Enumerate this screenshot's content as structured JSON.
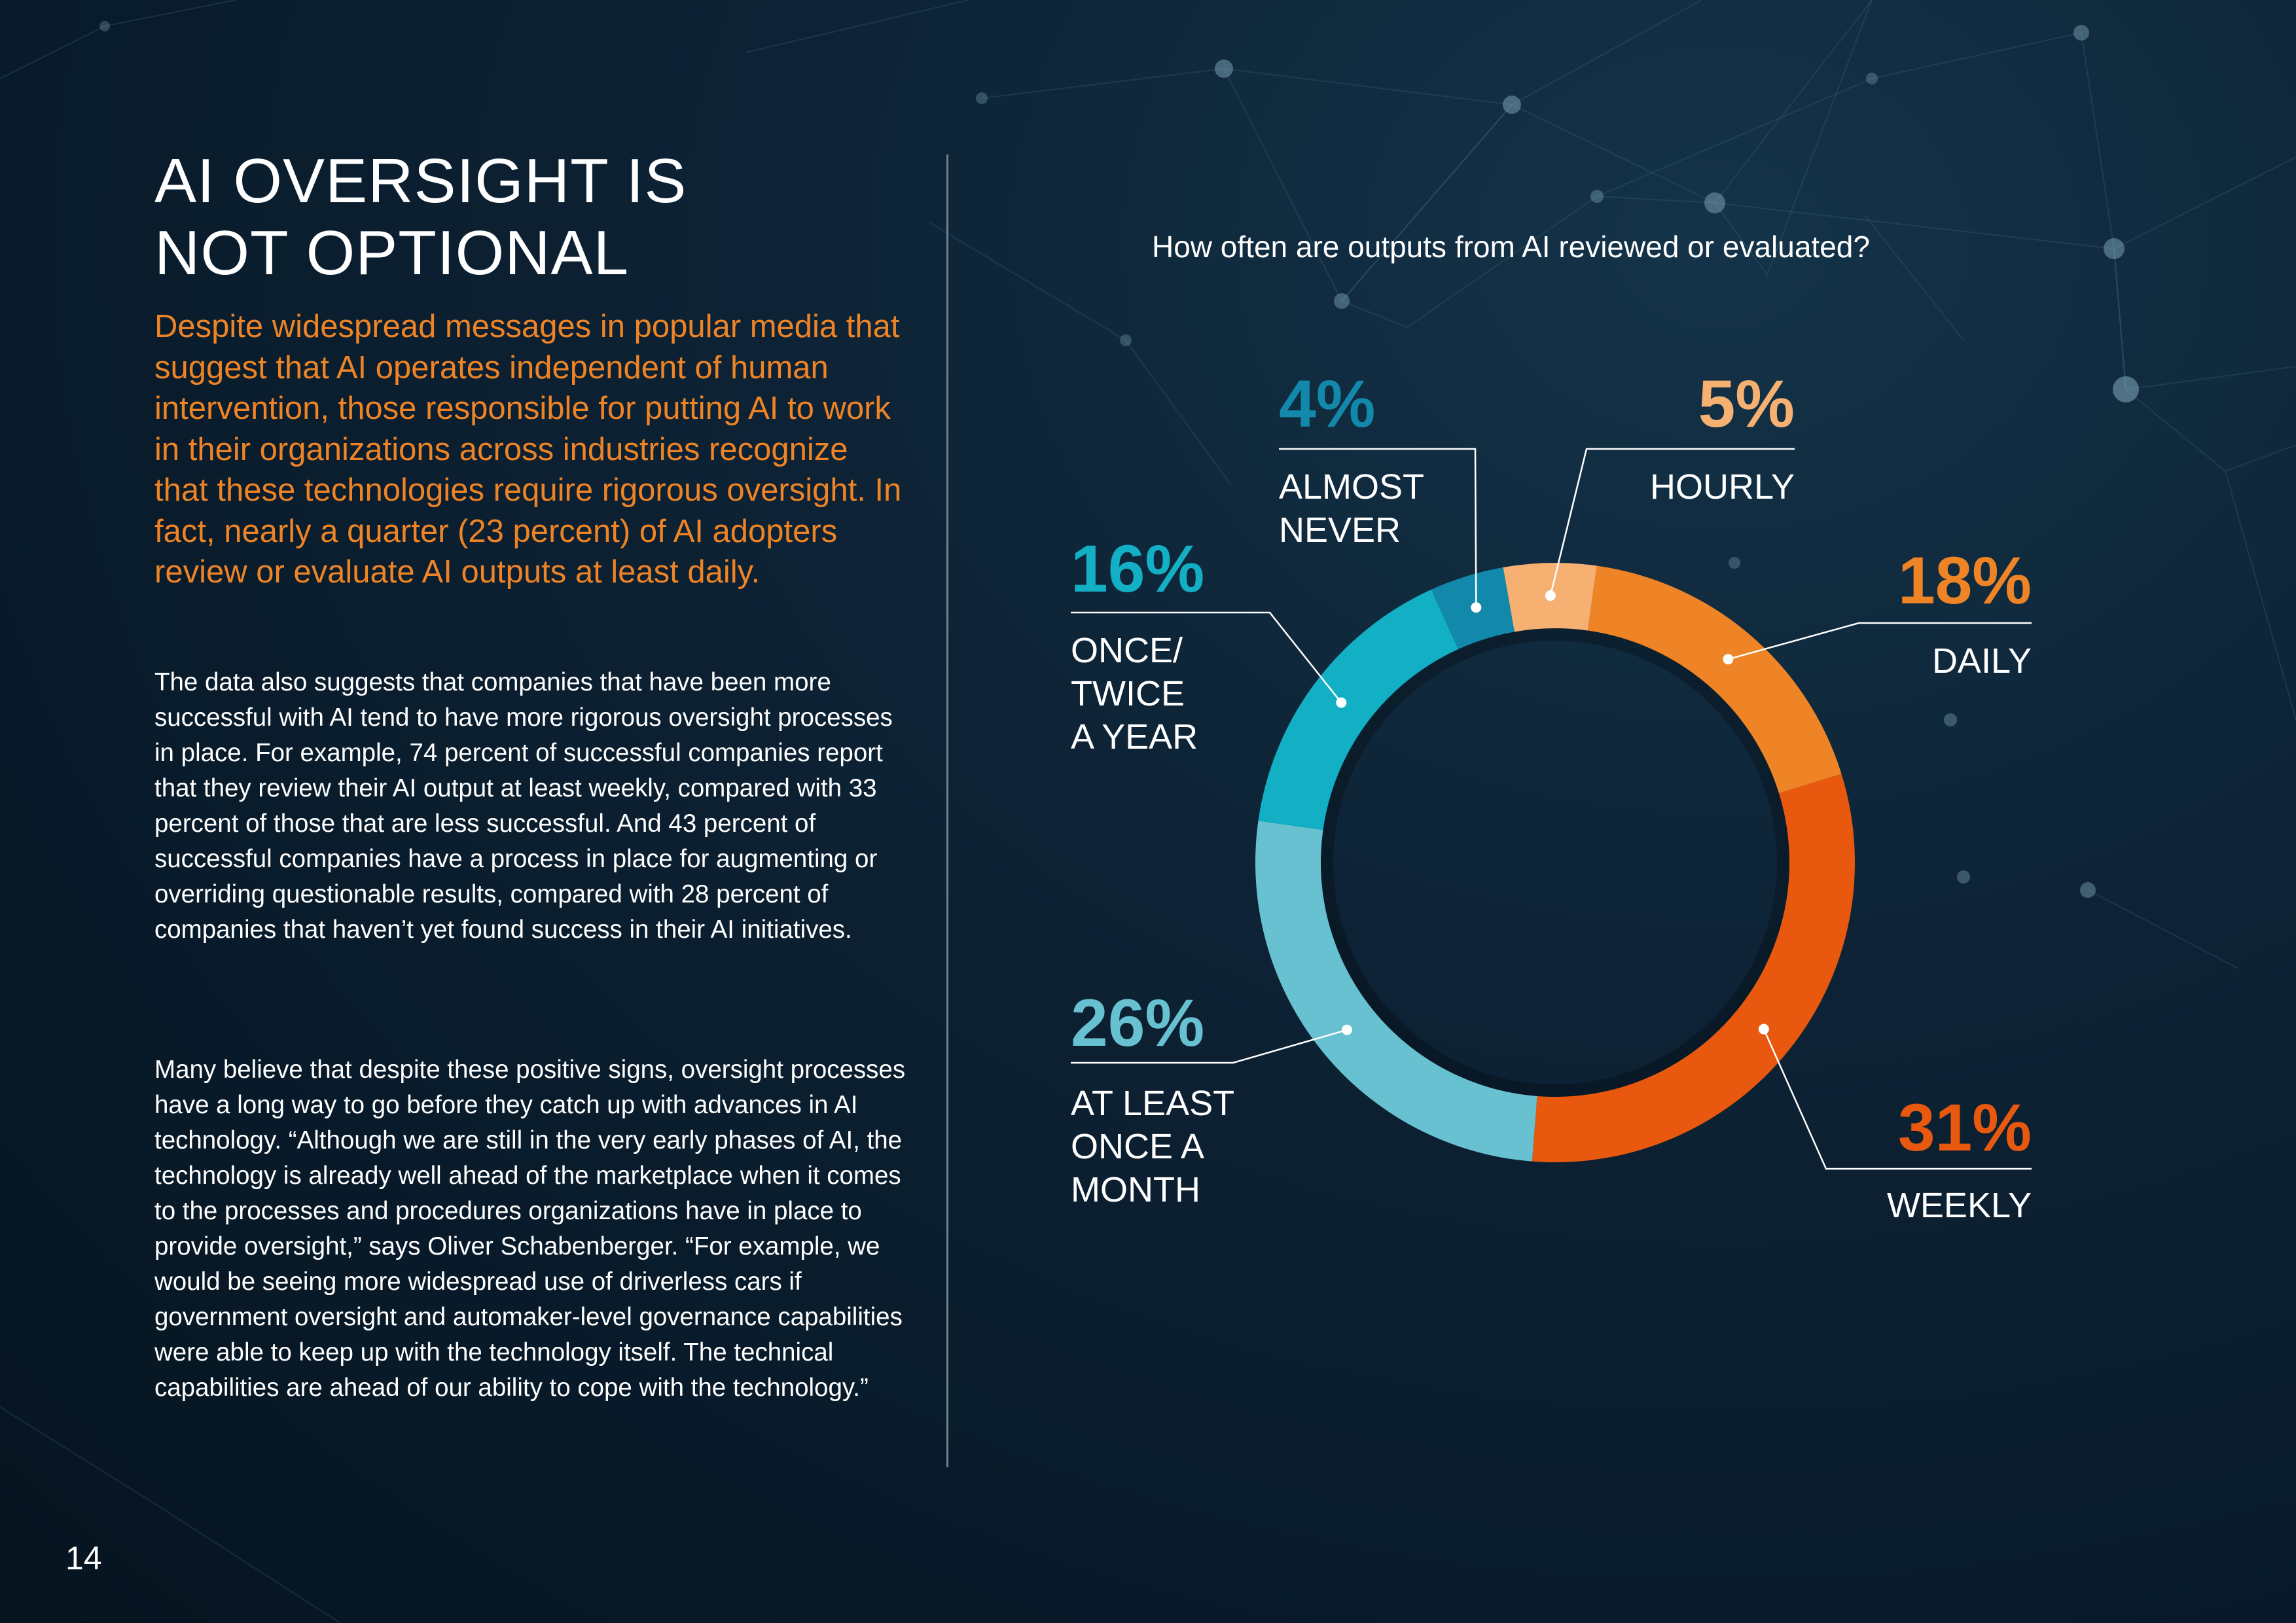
{
  "page": {
    "title_lines": [
      "AI OVERSIGHT IS",
      "NOT OPTIONAL"
    ],
    "lead": "Despite widespread messages in popular media that suggest that AI operates independent of human intervention, those responsible for putting AI to work in their organizations across industries recognize that these technologies require rigorous oversight. In fact, nearly a quarter (23 percent) of AI adopters review or evaluate AI outputs at least daily.",
    "body_paragraphs": [
      "The data also suggests that companies that have been more successful with AI tend to have more rigorous oversight processes in place. For example, 74 percent of successful companies report that they review their AI output at least weekly, compared with 33 percent of those that are less successful. And 43 percent of successful companies have a process in place for augmenting or overriding questionable results, compared with 28 percent of companies that haven’t yet found success in their AI initiatives.",
      "Many believe that despite these positive signs, oversight processes have a long way to go before they catch up with advances in AI technology. “Although we are still in the very early phases of AI, the technology is already well ahead of the marketplace when it comes to the processes and procedures organizations have in place to provide oversight,” says Oliver Schabenberger. “For example, we would be seeing more widespread use of driverless cars if government oversight and automaker-level governance capabilities were able to keep up with the technology itself. The technical capabilities are ahead of our ability to cope with the technology.”"
    ],
    "page_number": "14"
  },
  "chart_data": {
    "type": "pie",
    "title": "How often are outputs from AI reviewed or evaluated?",
    "unit": "%",
    "slices": [
      {
        "label": "HOURLY",
        "label_lines": [
          "HOURLY"
        ],
        "value": 5,
        "display": "5%",
        "color": "#f5b072",
        "text_color": "#f5b072"
      },
      {
        "label": "DAILY",
        "label_lines": [
          "DAILY"
        ],
        "value": 18,
        "display": "18%",
        "color": "#ee8425",
        "text_color": "#ee8425"
      },
      {
        "label": "WEEKLY",
        "label_lines": [
          "WEEKLY"
        ],
        "value": 31,
        "display": "31%",
        "color": "#e8590f",
        "text_color": "#e8590f"
      },
      {
        "label": "AT LEAST ONCE A MONTH",
        "label_lines": [
          "AT LEAST",
          "ONCE A",
          "MONTH"
        ],
        "value": 26,
        "display": "26%",
        "color": "#67c1d1",
        "text_color": "#67c1d1"
      },
      {
        "label": "ONCE/ TWICE A YEAR",
        "label_lines": [
          "ONCE/",
          "TWICE",
          "A YEAR"
        ],
        "value": 16,
        "display": "16%",
        "color": "#12afc5",
        "text_color": "#12afc5"
      },
      {
        "label": "ALMOST NEVER",
        "label_lines": [
          "ALMOST",
          "NEVER"
        ],
        "value": 4,
        "display": "4%",
        "color": "#1289ab",
        "text_color": "#1289ab"
      }
    ]
  }
}
